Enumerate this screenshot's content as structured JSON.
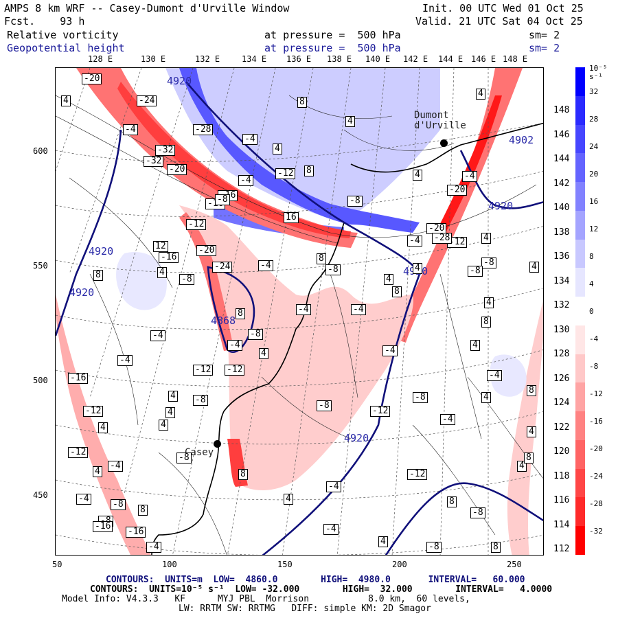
{
  "header": {
    "title": "AMPS 8 km WRF -- Casey-Dumont d'Urville Window",
    "init": "Init. 00 UTC Wed 01 Oct 25",
    "fcst": "Fcst.    93 h",
    "valid": "Valid. 21 UTC Sat 04 Oct 25"
  },
  "fields": [
    {
      "name": "Relative vorticity",
      "level": "at pressure =  500 hPa",
      "sm": "sm= 2"
    },
    {
      "name": "Geopotential height",
      "level": "at pressure =  500 hPa",
      "sm": "sm= 2"
    }
  ],
  "top_longitudes": [
    "128 E",
    "130 E",
    "132 E",
    "134 E",
    "136 E",
    "138 E",
    "140 E",
    "142 E",
    "144 E",
    "146 E",
    "148 E"
  ],
  "right_longitudes": [
    "148 E",
    "146 E",
    "144 E",
    "142 E",
    "140 E",
    "138 E",
    "136 E",
    "134 E",
    "132 E",
    "130 E",
    "128 E",
    "126 E",
    "124 E",
    "122 E",
    "120 E",
    "118 E",
    "116 E",
    "114 E",
    "112 E"
  ],
  "x_ticks": [
    "50",
    "100",
    "150",
    "200",
    "250"
  ],
  "y_ticks": [
    "600",
    "550",
    "500",
    "450"
  ],
  "colorbar": {
    "unit": "10⁻⁵ s⁻¹",
    "labels": [
      "32",
      "28",
      "24",
      "20",
      "16",
      "12",
      "8",
      "4",
      "0",
      "-4",
      "-8",
      "-12",
      "-16",
      "-20",
      "-24",
      "-28",
      "-32"
    ],
    "colors": [
      "#0000ff",
      "#2a2aff",
      "#4646ff",
      "#6464ff",
      "#8282ff",
      "#a4a4ff",
      "#c8c8ff",
      "#e6e6ff",
      "#ffffff",
      "#ffe6e6",
      "#ffc8c8",
      "#ffa4a4",
      "#ff8282",
      "#ff6464",
      "#ff4646",
      "#ff2a2a",
      "#ff0000"
    ]
  },
  "map": {
    "stations": [
      "Dumont d'Urville",
      "Casey"
    ],
    "height_labels": [
      "4920",
      "4920",
      "4920",
      "4868",
      "4902",
      "4920",
      "4920",
      "4920"
    ],
    "vort_labels": [
      "-20",
      "4",
      "-24",
      "-4",
      "-32",
      "-28",
      "-32",
      "-20",
      "-16",
      "-16",
      "-12",
      "-20",
      "-16",
      "-24",
      "-8",
      "4",
      "-4",
      "8",
      "12",
      "-4",
      "-4",
      "-12",
      "-8",
      "-12",
      "-16",
      "-8",
      "4",
      "8",
      "8",
      "16",
      "-8",
      "8",
      "-8",
      "-4",
      "4",
      "-12",
      "-8",
      "-4",
      "-4",
      "4",
      "-20",
      "-12",
      "-8",
      "4",
      "-20",
      "-28",
      "8",
      "-4",
      "4",
      "-8",
      "4",
      "8",
      "-12",
      "-12",
      "-4",
      "-8",
      "4",
      "4",
      "4",
      "4",
      "8",
      "4",
      "-8",
      "-4",
      "8",
      "4",
      "-4",
      "8",
      "-4",
      "-4",
      "-8",
      "4",
      "-12",
      "-8",
      "-4",
      "8",
      "-16",
      "-8",
      "-12",
      "-4",
      "-16",
      "-4",
      "4",
      "-4",
      "4",
      "8",
      "-4",
      "4",
      "4",
      "-8",
      "8",
      "4",
      "-4",
      "4",
      "4",
      "-8",
      "4",
      "8"
    ]
  },
  "footer": {
    "line1": "CONTOURS:  UNITS=m  LOW=  4860.0        HIGH=  4980.0       INTERVAL=   60.000",
    "line2": "CONTOURS:  UNITS=10⁻⁵ s⁻¹  LOW= -32.000        HIGH=  32.000        INTERVAL=   4.0000",
    "line3": "Model Info: V4.3.3   KF      MYJ PBL  Morrison           8.0 km,  60 levels,",
    "line4": "LW: RRTM SW: RRTMG   DIFF: simple KM: 2D Smagor"
  }
}
